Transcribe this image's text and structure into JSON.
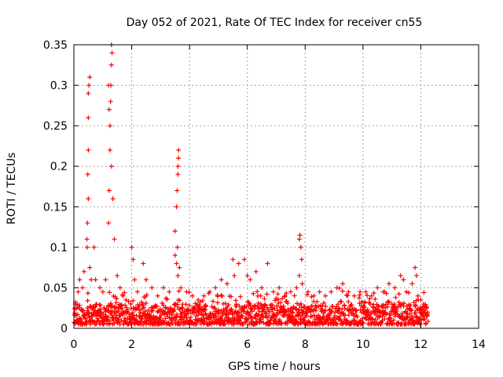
{
  "chart_data": {
    "type": "scatter",
    "title": "Day 052 of 2021, Rate Of TEC Index for receiver cn55",
    "xlabel": "GPS time / hours",
    "ylabel": "ROTI / TECUs",
    "xlim": [
      0,
      14
    ],
    "ylim": [
      0,
      0.35
    ],
    "x_ticks": [
      0,
      2,
      4,
      6,
      8,
      10,
      12,
      14
    ],
    "x_tick_labels": [
      "0",
      "2",
      "4",
      "6",
      "8",
      "10",
      "12",
      "14"
    ],
    "y_ticks": [
      0,
      0.05,
      0.1,
      0.15,
      0.2,
      0.25,
      0.3,
      0.35
    ],
    "y_tick_labels": [
      "0",
      "0.05",
      "0.1",
      "0.15",
      "0.2",
      "0.25",
      "0.3",
      "0.35"
    ],
    "grid": true,
    "marker": "+",
    "color": "#ff0000",
    "series": [
      {
        "name": "ROTI cn55",
        "x": [
          0.05,
          0.15,
          0.2,
          0.3,
          0.35,
          0.45,
          0.5,
          0.5,
          0.5,
          0.52,
          0.55,
          0.6,
          0.48,
          0.47,
          0.46,
          0.5,
          0.55,
          0.7,
          0.75,
          0.9,
          1.0,
          1.1,
          1.2,
          1.22,
          1.25,
          1.25,
          1.27,
          1.28,
          1.3,
          1.3,
          1.32,
          1.2,
          1.22,
          1.3,
          1.35,
          1.4,
          1.5,
          1.6,
          1.7,
          1.8,
          2.0,
          2.05,
          2.1,
          2.2,
          2.4,
          2.5,
          2.7,
          2.9,
          3.1,
          3.3,
          3.5,
          3.5,
          3.55,
          3.57,
          3.6,
          3.6,
          3.62,
          3.62,
          3.58,
          3.55,
          3.6,
          3.65,
          3.7,
          3.9,
          4.1,
          4.3,
          4.5,
          4.7,
          4.9,
          5.1,
          5.3,
          5.5,
          5.55,
          5.7,
          5.9,
          6.0,
          6.1,
          6.3,
          6.5,
          6.7,
          6.9,
          7.1,
          7.3,
          7.5,
          7.7,
          7.8,
          7.82,
          7.85,
          7.88,
          7.8,
          7.9,
          8.1,
          8.3,
          8.5,
          8.7,
          8.9,
          9.1,
          9.3,
          9.5,
          9.7,
          9.9,
          10.1,
          10.3,
          10.5,
          10.7,
          10.9,
          11.1,
          11.3,
          11.4,
          11.5,
          11.7,
          11.8,
          11.85,
          11.9,
          12.0,
          12.1,
          12.2
        ],
        "y": [
          0.03,
          0.045,
          0.06,
          0.05,
          0.07,
          0.11,
          0.16,
          0.22,
          0.26,
          0.3,
          0.31,
          0.06,
          0.19,
          0.13,
          0.1,
          0.29,
          0.075,
          0.1,
          0.06,
          0.05,
          0.045,
          0.06,
          0.13,
          0.17,
          0.22,
          0.25,
          0.28,
          0.3,
          0.325,
          0.35,
          0.34,
          0.3,
          0.27,
          0.2,
          0.16,
          0.11,
          0.065,
          0.05,
          0.04,
          0.035,
          0.1,
          0.085,
          0.06,
          0.045,
          0.08,
          0.06,
          0.05,
          0.04,
          0.05,
          0.045,
          0.09,
          0.12,
          0.15,
          0.17,
          0.19,
          0.2,
          0.21,
          0.22,
          0.1,
          0.08,
          0.065,
          0.075,
          0.05,
          0.045,
          0.04,
          0.035,
          0.04,
          0.045,
          0.05,
          0.06,
          0.055,
          0.085,
          0.065,
          0.08,
          0.085,
          0.065,
          0.06,
          0.07,
          0.05,
          0.08,
          0.045,
          0.05,
          0.04,
          0.045,
          0.05,
          0.11,
          0.115,
          0.1,
          0.085,
          0.065,
          0.055,
          0.045,
          0.04,
          0.045,
          0.04,
          0.045,
          0.05,
          0.055,
          0.045,
          0.04,
          0.045,
          0.045,
          0.04,
          0.05,
          0.045,
          0.055,
          0.05,
          0.065,
          0.06,
          0.045,
          0.055,
          0.075,
          0.065,
          0.04,
          0.035,
          0.03,
          0.025
        ]
      }
    ],
    "baseline_band": {
      "x_range": [
        0,
        12.25
      ],
      "y_typical": [
        0.005,
        0.03
      ]
    }
  }
}
